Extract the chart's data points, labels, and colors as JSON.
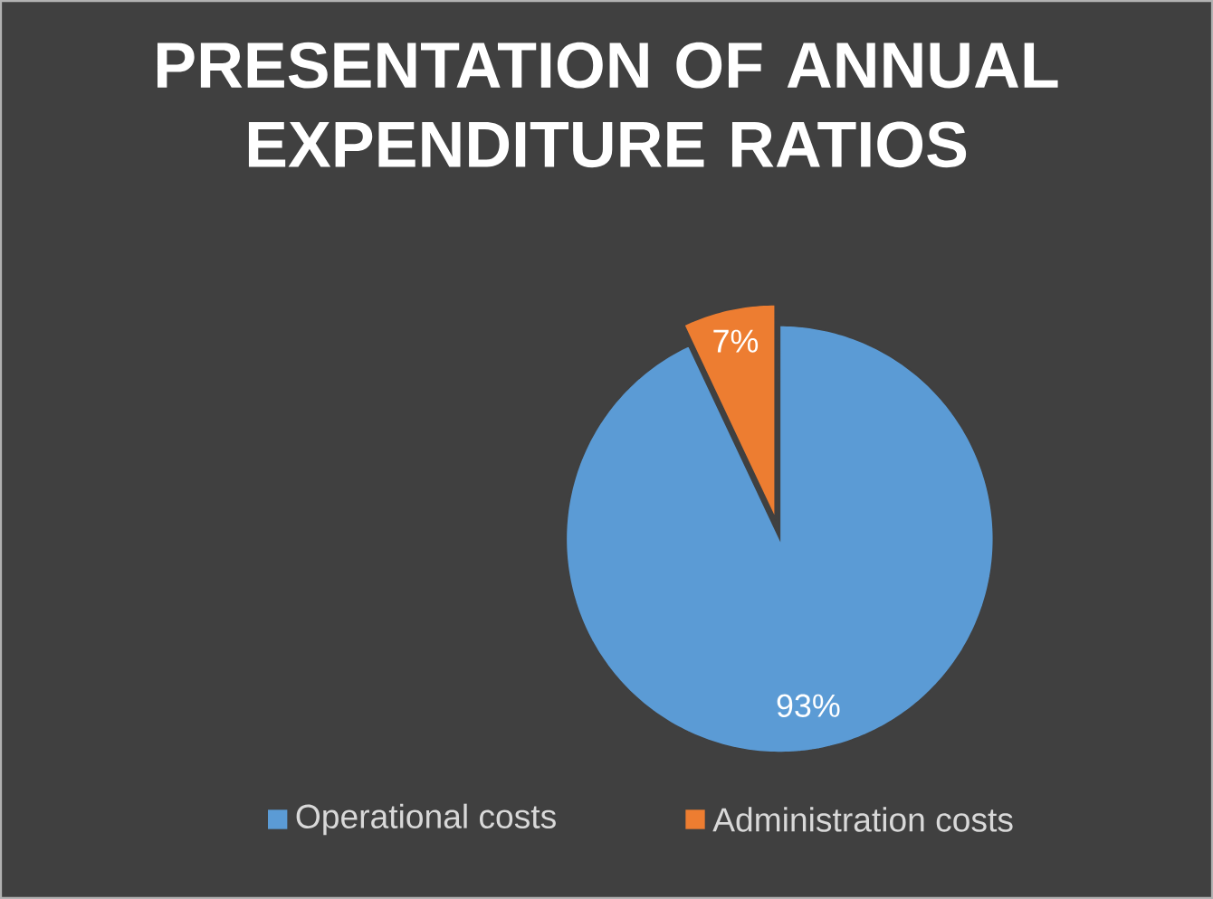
{
  "chart_data": {
    "type": "pie",
    "title": "PRESENTATION OF ANNUAL EXPENDITURE RATIOS",
    "categories": [
      "Operational costs",
      "Administration costs"
    ],
    "values": [
      93,
      7
    ],
    "colors": [
      "#5b9bd5",
      "#ed7d31"
    ],
    "value_labels": [
      "93%",
      "7%"
    ],
    "legend": "bottom"
  }
}
